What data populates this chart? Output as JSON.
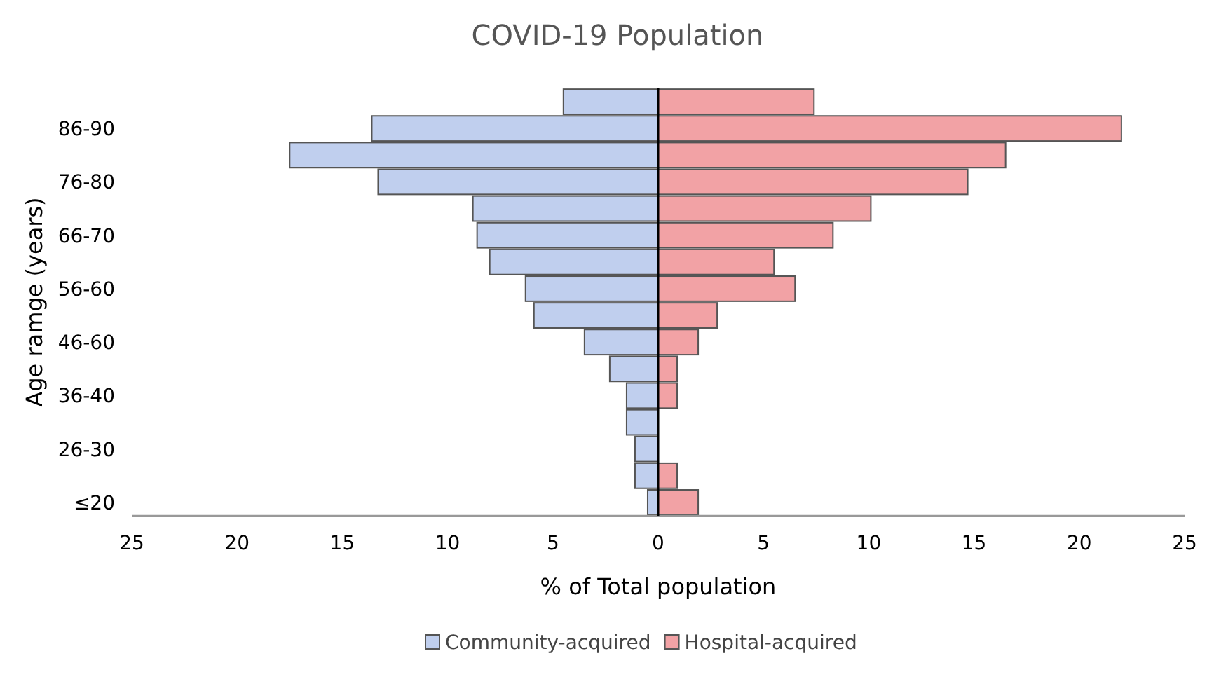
{
  "chart_data": {
    "type": "bar",
    "orientation": "horizontal",
    "stacked": true,
    "title": "COVID-19 Population",
    "xlabel": "% of Total population",
    "ylabel": "Age ramge (years)",
    "categories": [
      null,
      "86-90",
      null,
      "76-80",
      null,
      "66-70",
      null,
      "56-60",
      null,
      "46-60",
      null,
      "36-40",
      null,
      "26-30",
      null,
      "≤20"
    ],
    "series": [
      {
        "name": "Community-acquired",
        "color": "#c0cfee",
        "values": [
          -4.5,
          -13.6,
          -17.5,
          -13.3,
          -8.8,
          -8.6,
          -8.0,
          -6.3,
          -5.9,
          -3.5,
          -2.3,
          -1.5,
          -1.5,
          -1.1,
          -1.1,
          -0.5
        ]
      },
      {
        "name": "Hospital-acquired",
        "color": "#f2a2a5",
        "values": [
          7.4,
          22.0,
          16.5,
          14.7,
          10.1,
          8.3,
          5.5,
          6.5,
          2.8,
          1.9,
          0.9,
          0.9,
          0,
          0,
          0.9,
          1.9
        ]
      }
    ],
    "xlim": [
      -25,
      25
    ],
    "xticks": [
      {
        "value": -25,
        "label": "25"
      },
      {
        "value": -20,
        "label": "20"
      },
      {
        "value": -15,
        "label": "15"
      },
      {
        "value": -10,
        "label": "10"
      },
      {
        "value": -5,
        "label": "5"
      },
      0,
      5,
      10,
      15,
      20,
      25
    ],
    "legend": "bottom"
  }
}
